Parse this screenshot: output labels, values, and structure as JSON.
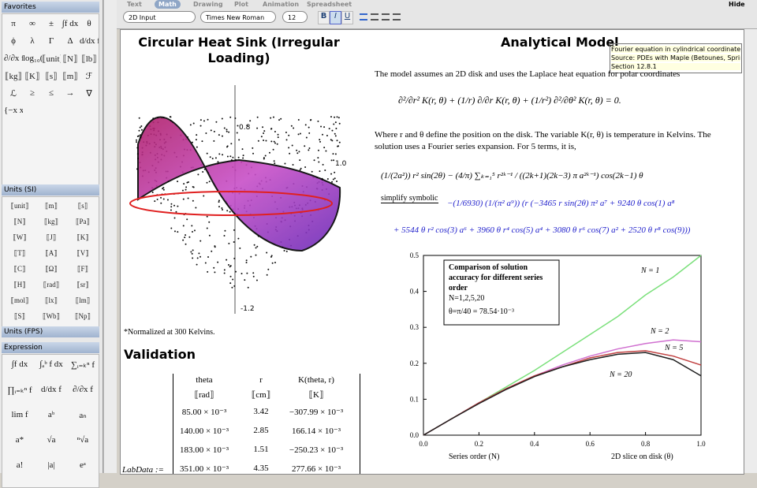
{
  "toolbar": {
    "tabs": [
      "Text",
      "Math",
      "Drawing",
      "Plot",
      "Animation",
      "Spreadsheet"
    ],
    "active_tab": "Math",
    "hide": "Hide",
    "input_mode": "2D Input",
    "font": "Times New Roman",
    "size": "12",
    "style_buttons": [
      "B",
      "I",
      "U"
    ]
  },
  "palettes": [
    {
      "title": "Favorites",
      "items": [
        "π",
        "∞",
        "±",
        "∫f dx",
        "θ",
        "ϕ",
        "λ",
        "Γ",
        "Δ",
        "d/dx f",
        "∂/∂x f",
        "log₁₀(a)",
        "⟦unit⟧",
        "⟦N⟧",
        "⟦lb⟧",
        "⟦kg⟧",
        "⟦K⟧",
        "⟦s⟧",
        "⟦m⟧",
        "ℱ",
        "ℒ",
        "≥",
        "≤",
        "→",
        "∇",
        "{−x x<a; x x≥a}"
      ]
    },
    {
      "title": "Units (SI)",
      "items": [
        "⟦unit⟧",
        "⟦m⟧",
        "⟦s⟧",
        "⟦N⟧",
        "⟦kg⟧",
        "⟦Pa⟧",
        "⟦W⟧",
        "⟦J⟧",
        "⟦K⟧",
        "⟦T⟧",
        "⟦A⟧",
        "⟦V⟧",
        "⟦C⟧",
        "⟦Ω⟧",
        "⟦F⟧",
        "⟦H⟧",
        "⟦rad⟧",
        "⟦sr⟧",
        "⟦mol⟧",
        "⟦lx⟧",
        "⟦lm⟧",
        "⟦S⟧",
        "⟦Wb⟧",
        "⟦Np⟧"
      ]
    },
    {
      "title": "Units (FPS)",
      "items": []
    },
    {
      "title": "Expression",
      "items": [
        "∫f dx",
        "∫ₐᵇ f dx",
        "∑ᵢ₌ₖⁿ f",
        "∏ᵢ₌ₖⁿ f",
        "d/dx f",
        "∂/∂x f",
        "lim f",
        "aᵇ",
        "aₙ",
        "a*",
        "√a",
        "ⁿ√a",
        "a!",
        "|a|",
        "eᵃ"
      ]
    }
  ],
  "document": {
    "left_title": "Circular Heat Sink (Irregular Loading)",
    "surface_ticks": [
      "0.8",
      "1.0",
      "-1.2"
    ],
    "note": "*Normalized at 300 Kelvins.",
    "validation": "Validation",
    "table": {
      "assign": "LabData :=",
      "header": [
        "theta",
        "r",
        "K(theta, r)"
      ],
      "units": [
        "⟦rad⟧",
        "⟦cm⟧",
        "⟦K⟧"
      ],
      "rows": [
        [
          "85.00 × 10⁻³",
          "3.42",
          "−307.99 × 10⁻³"
        ],
        [
          "140.00 × 10⁻³",
          "2.85",
          "166.14 × 10⁻³"
        ],
        [
          "183.00 × 10⁻³",
          "1.51",
          "−250.23 × 10⁻³"
        ],
        [
          "351.00 × 10⁻³",
          "4.35",
          "277.66 × 10⁻³"
        ]
      ]
    },
    "right_title": "Analytical Model",
    "tooltip": [
      "Fourier equation in cylindrical coordinates",
      "Source: PDEs with Maple (Betounes, Springe",
      "Section 12.8.1"
    ],
    "para1": "The model assumes an 2D disk and uses the Laplace heat equation for polar coordinates",
    "eq1": "∂²/∂r² K(r, θ) + (1/r) ∂/∂r K(r, θ) + (1/r²) ∂²/∂θ² K(r, θ) = 0.",
    "para2": "Where r and θ define the position on the disk. The variable K(r, θ) is temperature in Kelvins. The solution uses a Fourier series expansion. For 5 terms, it is,",
    "eq2": "(1/(2a²)) r² sin(2θ) − (4/π) ∑ₖ₌₁⁵ r²ᵏ⁻¹ / ((2k+1)(2k−3) π a²ᵏ⁻¹) cos(2k−1) θ",
    "simplify": "simplify symbolic",
    "result": [
      "−(1/6930) (1/(π² a⁹)) (r (−3465 r sin(2θ) π² a⁷ + 9240 θ cos(1) a⁸",
      "+ 5544 θ r² cos(3) a⁶ + 3960 θ r⁴ cos(5) a⁴ + 3080 θ r⁶ cos(7) a² + 2520 θ r⁸ cos(9)))"
    ]
  },
  "chart_data": {
    "type": "line",
    "annotation": [
      "Comparison of solution",
      "accuracy for different series",
      "order",
      "N=1,2,5,20",
      "θ=π/40 = 78.54·10⁻³"
    ],
    "xlabel": "Series order (N)",
    "xlabel2": "2D slice on disk (θ)",
    "x": [
      0,
      0.1,
      0.2,
      0.3,
      0.4,
      0.5,
      0.6,
      0.7,
      0.8,
      0.9,
      1
    ],
    "series": [
      {
        "name": "N = 1",
        "color": "#7be07b",
        "values": [
          0,
          0.045,
          0.09,
          0.135,
          0.18,
          0.23,
          0.28,
          0.33,
          0.39,
          0.44,
          0.5
        ]
      },
      {
        "name": "N = 2",
        "color": "#d070d0",
        "values": [
          0,
          0.045,
          0.09,
          0.13,
          0.165,
          0.195,
          0.22,
          0.24,
          0.255,
          0.265,
          0.26
        ]
      },
      {
        "name": "N = 5",
        "color": "#c04040",
        "values": [
          0,
          0.045,
          0.09,
          0.13,
          0.165,
          0.19,
          0.215,
          0.23,
          0.235,
          0.22,
          0.195
        ]
      },
      {
        "name": "N = 20",
        "color": "#202020",
        "values": [
          0,
          0.045,
          0.088,
          0.128,
          0.163,
          0.19,
          0.21,
          0.225,
          0.23,
          0.21,
          0.165
        ]
      }
    ],
    "xlim": [
      0,
      1
    ],
    "ylim": [
      0,
      0.5
    ],
    "xticks": [
      {
        "value": 0,
        "label": "0.0"
      },
      0.2,
      0.4,
      0.6,
      0.8,
      {
        "value": 1,
        "label": "1.0"
      }
    ],
    "yticks": [
      {
        "value": 0,
        "label": "0.0"
      },
      0.1,
      0.2,
      0.3,
      0.4,
      0.5
    ]
  }
}
